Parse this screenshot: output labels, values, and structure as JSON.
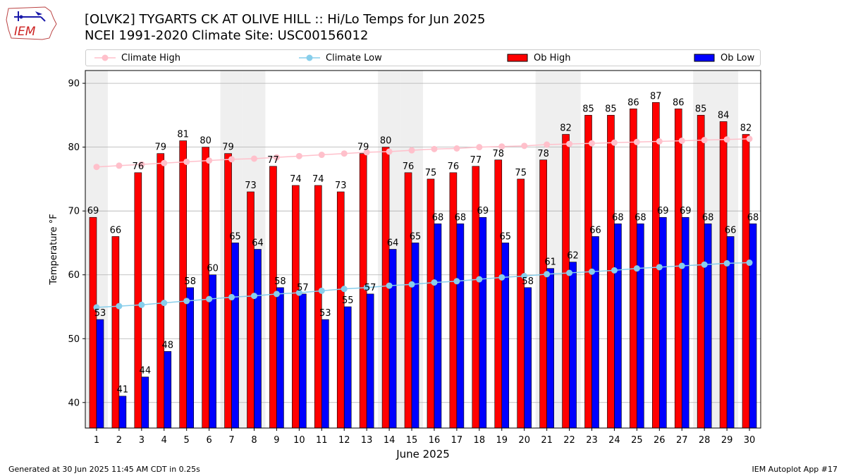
{
  "header": {
    "title_line1": "[OLVK2] TYGARTS CK AT OLIVE HILL :: Hi/Lo Temps for Jun 2025",
    "title_line2": "NCEI 1991-2020 Climate Site: USC00156012",
    "logo_text": "IEM"
  },
  "footer": {
    "generated": "Generated at 30 Jun 2025 11:45 AM CDT in 0.25s",
    "app": "IEM Autoplot App #17"
  },
  "colors": {
    "ob_high": "#ff0000",
    "ob_low": "#0000ff",
    "climate_high": "#ffc0cb",
    "climate_low": "#87ceeb",
    "weekend_shade": "#efefef"
  },
  "chart_data": {
    "type": "bar",
    "xlabel": "June 2025",
    "ylabel": "Temperature °F",
    "ylim": [
      36,
      92
    ],
    "yticks": [
      40,
      50,
      60,
      70,
      80,
      90
    ],
    "grid": true,
    "legend_position": "top",
    "categories": [
      1,
      2,
      3,
      4,
      5,
      6,
      7,
      8,
      9,
      10,
      11,
      12,
      13,
      14,
      15,
      16,
      17,
      18,
      19,
      20,
      21,
      22,
      23,
      24,
      25,
      26,
      27,
      28,
      29,
      30
    ],
    "weekend_days": [
      1,
      7,
      8,
      14,
      15,
      21,
      22,
      28,
      29
    ],
    "series": [
      {
        "name": "Ob High",
        "kind": "bar",
        "values": [
          69,
          66,
          76,
          79,
          81,
          80,
          79,
          73,
          77,
          74,
          74,
          73,
          79,
          80,
          76,
          75,
          76,
          77,
          78,
          75,
          78,
          82,
          85,
          85,
          86,
          87,
          86,
          85,
          84,
          82
        ]
      },
      {
        "name": "Ob Low",
        "kind": "bar",
        "values": [
          53,
          41,
          44,
          48,
          58,
          60,
          65,
          64,
          58,
          57,
          53,
          55,
          57,
          64,
          65,
          68,
          68,
          69,
          65,
          58,
          61,
          62,
          66,
          68,
          68,
          69,
          69,
          68,
          66,
          68
        ]
      },
      {
        "name": "Climate High",
        "kind": "line",
        "values": [
          76.9,
          77.1,
          77.3,
          77.5,
          77.7,
          77.9,
          78.1,
          78.2,
          78.4,
          78.6,
          78.8,
          79.0,
          79.2,
          79.3,
          79.5,
          79.7,
          79.8,
          80.0,
          80.1,
          80.2,
          80.4,
          80.5,
          80.6,
          80.7,
          80.8,
          80.9,
          81.0,
          81.1,
          81.2,
          81.3
        ]
      },
      {
        "name": "Climate Low",
        "kind": "line",
        "values": [
          54.9,
          55.1,
          55.3,
          55.6,
          55.9,
          56.2,
          56.5,
          56.7,
          57.0,
          57.2,
          57.5,
          57.8,
          58.0,
          58.3,
          58.5,
          58.8,
          59.0,
          59.3,
          59.6,
          59.8,
          60.1,
          60.3,
          60.5,
          60.7,
          61.0,
          61.2,
          61.4,
          61.6,
          61.8,
          61.9
        ]
      }
    ]
  }
}
